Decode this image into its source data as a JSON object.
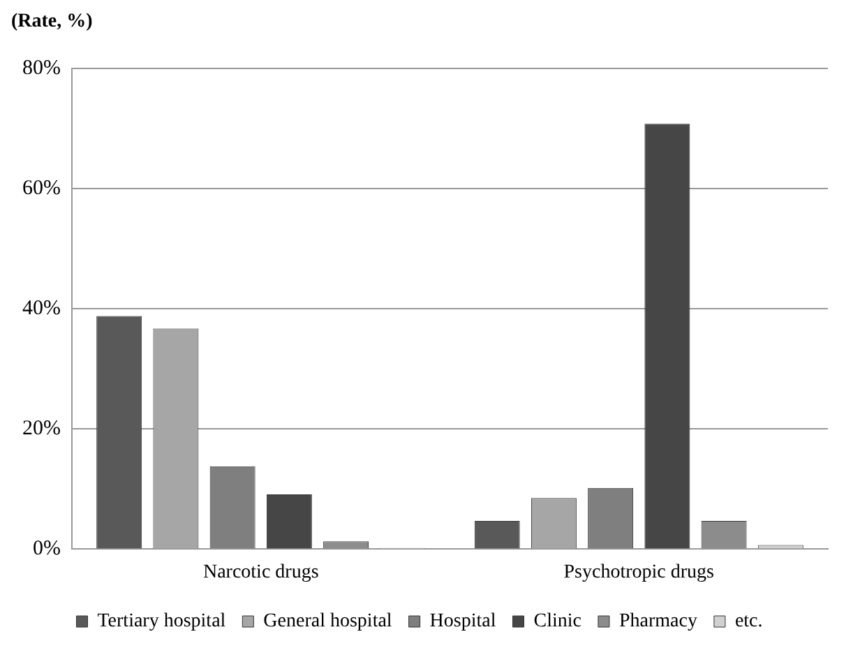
{
  "chart_data": {
    "type": "bar",
    "ylabel": "(Rate, %)",
    "categories": [
      "Narcotic drugs",
      "Psychotropic drugs"
    ],
    "series": [
      {
        "name": "Tertiary hospital",
        "color": "#595959",
        "values": [
          38.8,
          4.7
        ]
      },
      {
        "name": "General hospital",
        "color": "#a6a6a6",
        "values": [
          36.7,
          8.5
        ]
      },
      {
        "name": "Hospital",
        "color": "#7f7f7f",
        "values": [
          13.8,
          10.2
        ]
      },
      {
        "name": "Clinic",
        "color": "#464646",
        "values": [
          9.1,
          70.8
        ]
      },
      {
        "name": "Pharmacy",
        "color": "#8c8c8c",
        "values": [
          1.3,
          4.7
        ]
      },
      {
        "name": "etc.",
        "color": "#d0d0d0",
        "values": [
          0.2,
          0.7
        ]
      }
    ],
    "ylim": [
      0,
      80
    ],
    "yticks": [
      {
        "value": 0,
        "label": "0%"
      },
      {
        "value": 20,
        "label": "20%"
      },
      {
        "value": 40,
        "label": "40%"
      },
      {
        "value": 60,
        "label": "60%"
      },
      {
        "value": 80,
        "label": "80%"
      }
    ],
    "grid": "y",
    "legend": "bottom"
  }
}
